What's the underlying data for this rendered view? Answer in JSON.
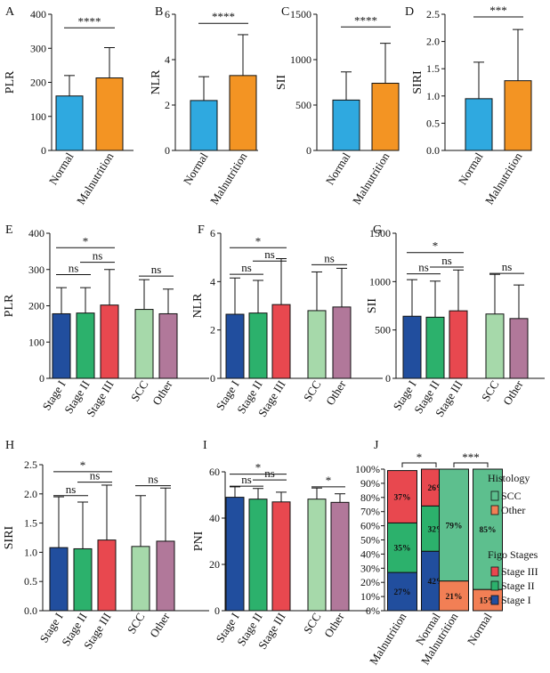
{
  "colors": {
    "normal": "#2FA9E0",
    "malnutrition": "#F39423",
    "stage1": "#214E9E",
    "stage2": "#2CB16C",
    "stage3": "#E8484F",
    "scc": "#A6D9AA",
    "other": "#B1789A",
    "scc_fill": "#5DBF8E",
    "other_fill": "#F27F55"
  },
  "chart_data": [
    {
      "id": "A",
      "letter": "A",
      "type": "bar",
      "ylabel": "PLR",
      "ylim": [
        0,
        400
      ],
      "ticks": [
        0,
        100,
        200,
        300,
        400
      ],
      "categories": [
        "Normal",
        "Malnutrition"
      ],
      "values": [
        160,
        213
      ],
      "errors": [
        220,
        302
      ],
      "colors": [
        "normal",
        "malnutrition"
      ],
      "sig": [
        {
          "from": 0,
          "to": 1,
          "label": "****",
          "y": 360
        }
      ]
    },
    {
      "id": "B",
      "letter": "B",
      "type": "bar",
      "ylabel": "NLR",
      "ylim": [
        0,
        6
      ],
      "ticks": [
        0,
        2,
        4,
        6
      ],
      "categories": [
        "Normal",
        "Malnutrition"
      ],
      "values": [
        2.2,
        3.3
      ],
      "errors": [
        3.25,
        5.1
      ],
      "colors": [
        "normal",
        "malnutrition"
      ],
      "sig": [
        {
          "from": 0,
          "to": 1,
          "label": "****",
          "y": 5.6
        }
      ]
    },
    {
      "id": "C",
      "letter": "C",
      "type": "bar",
      "ylabel": "SII",
      "ylim": [
        0,
        1500
      ],
      "ticks": [
        0,
        500,
        1000,
        1500
      ],
      "categories": [
        "Normal",
        "Malnutrition"
      ],
      "values": [
        555,
        740
      ],
      "errors": [
        865,
        1180
      ],
      "colors": [
        "normal",
        "malnutrition"
      ],
      "sig": [
        {
          "from": 0,
          "to": 1,
          "label": "****",
          "y": 1360
        }
      ]
    },
    {
      "id": "D",
      "letter": "D",
      "type": "bar",
      "ylabel": "SIRI",
      "ylim": [
        0,
        2.5
      ],
      "ticks": [
        0.0,
        0.5,
        1.0,
        1.5,
        2.0,
        2.5
      ],
      "tickDecimals": 1,
      "categories": [
        "Normal",
        "Malnutrition"
      ],
      "values": [
        0.95,
        1.28
      ],
      "errors": [
        1.62,
        2.22
      ],
      "colors": [
        "normal",
        "malnutrition"
      ],
      "sig": [
        {
          "from": 0,
          "to": 1,
          "label": "***",
          "y": 2.45
        }
      ]
    },
    {
      "id": "E",
      "letter": "E",
      "type": "bar",
      "ylabel": "PLR",
      "ylim": [
        0,
        400
      ],
      "ticks": [
        0,
        100,
        200,
        300,
        400
      ],
      "categories": [
        "Stage I",
        "Stage II",
        "Stage III",
        "SCC",
        "Other"
      ],
      "values": [
        178,
        180,
        202,
        190,
        178
      ],
      "errors": [
        250,
        250,
        300,
        272,
        246
      ],
      "colors": [
        "stage1",
        "stage2",
        "stage3",
        "scc",
        "other"
      ],
      "sig": [
        {
          "from": 0,
          "to": 2,
          "label": "*",
          "y": 360
        },
        {
          "from": 0,
          "to": 1,
          "label": "ns",
          "y": 286
        },
        {
          "from": 1,
          "to": 2,
          "label": "ns",
          "y": 320
        },
        {
          "from": 3,
          "to": 4,
          "label": "ns",
          "y": 282
        }
      ]
    },
    {
      "id": "F",
      "letter": "F",
      "type": "bar",
      "ylabel": "NLR",
      "ylim": [
        0,
        6
      ],
      "ticks": [
        0,
        2,
        4,
        6
      ],
      "categories": [
        "Stage I",
        "Stage II",
        "Stage III",
        "SCC",
        "Other"
      ],
      "values": [
        2.65,
        2.7,
        3.05,
        2.8,
        2.95
      ],
      "errors": [
        4.15,
        4.05,
        4.95,
        4.4,
        4.55
      ],
      "colors": [
        "stage1",
        "stage2",
        "stage3",
        "scc",
        "other"
      ],
      "sig": [
        {
          "from": 0,
          "to": 2,
          "label": "*",
          "y": 5.4
        },
        {
          "from": 0,
          "to": 1,
          "label": "ns",
          "y": 4.3
        },
        {
          "from": 1,
          "to": 2,
          "label": "ns",
          "y": 4.85
        },
        {
          "from": 3,
          "to": 4,
          "label": "ns",
          "y": 4.7
        }
      ]
    },
    {
      "id": "G",
      "letter": "G",
      "type": "bar",
      "ylabel": "SII",
      "ylim": [
        0,
        1500
      ],
      "ticks": [
        0,
        500,
        1000,
        1500
      ],
      "categories": [
        "Stage I",
        "Stage II",
        "Stage III",
        "SCC",
        "Other"
      ],
      "values": [
        642,
        632,
        698,
        665,
        618
      ],
      "errors": [
        1020,
        1005,
        1120,
        1075,
        965
      ],
      "colors": [
        "stage1",
        "stage2",
        "stage3",
        "scc",
        "other"
      ],
      "sig": [
        {
          "from": 0,
          "to": 2,
          "label": "*",
          "y": 1300
        },
        {
          "from": 0,
          "to": 1,
          "label": "ns",
          "y": 1080
        },
        {
          "from": 1,
          "to": 2,
          "label": "ns",
          "y": 1150
        },
        {
          "from": 3,
          "to": 4,
          "label": "ns",
          "y": 1085
        }
      ]
    },
    {
      "id": "H",
      "letter": "H",
      "type": "bar",
      "ylabel": "SIRI",
      "ylim": [
        0,
        2.5
      ],
      "ticks": [
        0.0,
        0.5,
        1.0,
        1.5,
        2.0,
        2.5
      ],
      "tickDecimals": 1,
      "categories": [
        "Stage I",
        "Stage II",
        "Stage III",
        "SCC",
        "Other"
      ],
      "values": [
        1.08,
        1.06,
        1.21,
        1.1,
        1.19
      ],
      "errors": [
        1.95,
        1.86,
        2.15,
        1.97,
        2.1
      ],
      "colors": [
        "stage1",
        "stage2",
        "stage3",
        "scc",
        "other"
      ],
      "sig": [
        {
          "from": 0,
          "to": 2,
          "label": "*",
          "y": 2.38
        },
        {
          "from": 0,
          "to": 1,
          "label": "ns",
          "y": 1.97
        },
        {
          "from": 1,
          "to": 2,
          "label": "ns",
          "y": 2.2
        },
        {
          "from": 3,
          "to": 4,
          "label": "ns",
          "y": 2.14
        }
      ]
    },
    {
      "id": "I",
      "letter": "I",
      "type": "bar",
      "ylabel": "PNI",
      "ylim": [
        0,
        60
      ],
      "ticks": [
        0,
        20,
        40,
        60
      ],
      "categories": [
        "Stage I",
        "Stage II",
        "Stage III",
        "SCC",
        "Other"
      ],
      "values": [
        49,
        48.2,
        47,
        48.2,
        46.8
      ],
      "errors": [
        53.5,
        52.8,
        51.2,
        53,
        50.5
      ],
      "colors": [
        "stage1",
        "stage2",
        "stage3",
        "scc",
        "other"
      ],
      "sig": [
        {
          "from": 0,
          "to": 2,
          "label": "*",
          "y": 59
        },
        {
          "from": 0,
          "to": 1,
          "label": "ns",
          "y": 53.8
        },
        {
          "from": 1,
          "to": 2,
          "label": "ns",
          "y": 56.5
        },
        {
          "from": 3,
          "to": 4,
          "label": "*",
          "y": 53.5
        }
      ]
    },
    {
      "id": "J",
      "letter": "J",
      "type": "stacked-bar",
      "ticks": [
        "0%",
        "10%",
        "20%",
        "30%",
        "40%",
        "50%",
        "60%",
        "70%",
        "80%",
        "90%",
        "100%"
      ],
      "categories": [
        "Malnutrition",
        "Normal",
        "Malnutrition",
        "Normal"
      ],
      "groups": [
        {
          "name": "Figo Stages",
          "bars": [
            0,
            1
          ],
          "sig": "*"
        },
        {
          "name": "Histology",
          "bars": [
            2,
            3
          ],
          "sig": "***"
        }
      ],
      "stacks": [
        [
          {
            "key": "stage1",
            "value": 27,
            "label": "27%"
          },
          {
            "key": "stage2",
            "value": 35,
            "label": "35%"
          },
          {
            "key": "stage3",
            "value": 37,
            "label": "37%"
          }
        ],
        [
          {
            "key": "stage1",
            "value": 42,
            "label": "42%"
          },
          {
            "key": "stage2",
            "value": 32,
            "label": "32%"
          },
          {
            "key": "stage3",
            "value": 26,
            "label": "26%"
          }
        ],
        [
          {
            "key": "other_fill",
            "value": 21,
            "label": "21%"
          },
          {
            "key": "scc_fill",
            "value": 79,
            "label": "79%"
          }
        ],
        [
          {
            "key": "other_fill",
            "value": 15,
            "label": "15%"
          },
          {
            "key": "scc_fill",
            "value": 85,
            "label": "85%"
          }
        ]
      ],
      "legend": {
        "histology_title": "Histology",
        "histology": [
          {
            "label": "SCC",
            "key": "scc_fill"
          },
          {
            "label": "Other",
            "key": "other_fill"
          }
        ],
        "figo_title": "Figo Stages",
        "figo": [
          {
            "label": "Stage III",
            "key": "stage3"
          },
          {
            "label": "Stage II",
            "key": "stage2"
          },
          {
            "label": "Stage I",
            "key": "stage1"
          }
        ]
      }
    }
  ]
}
